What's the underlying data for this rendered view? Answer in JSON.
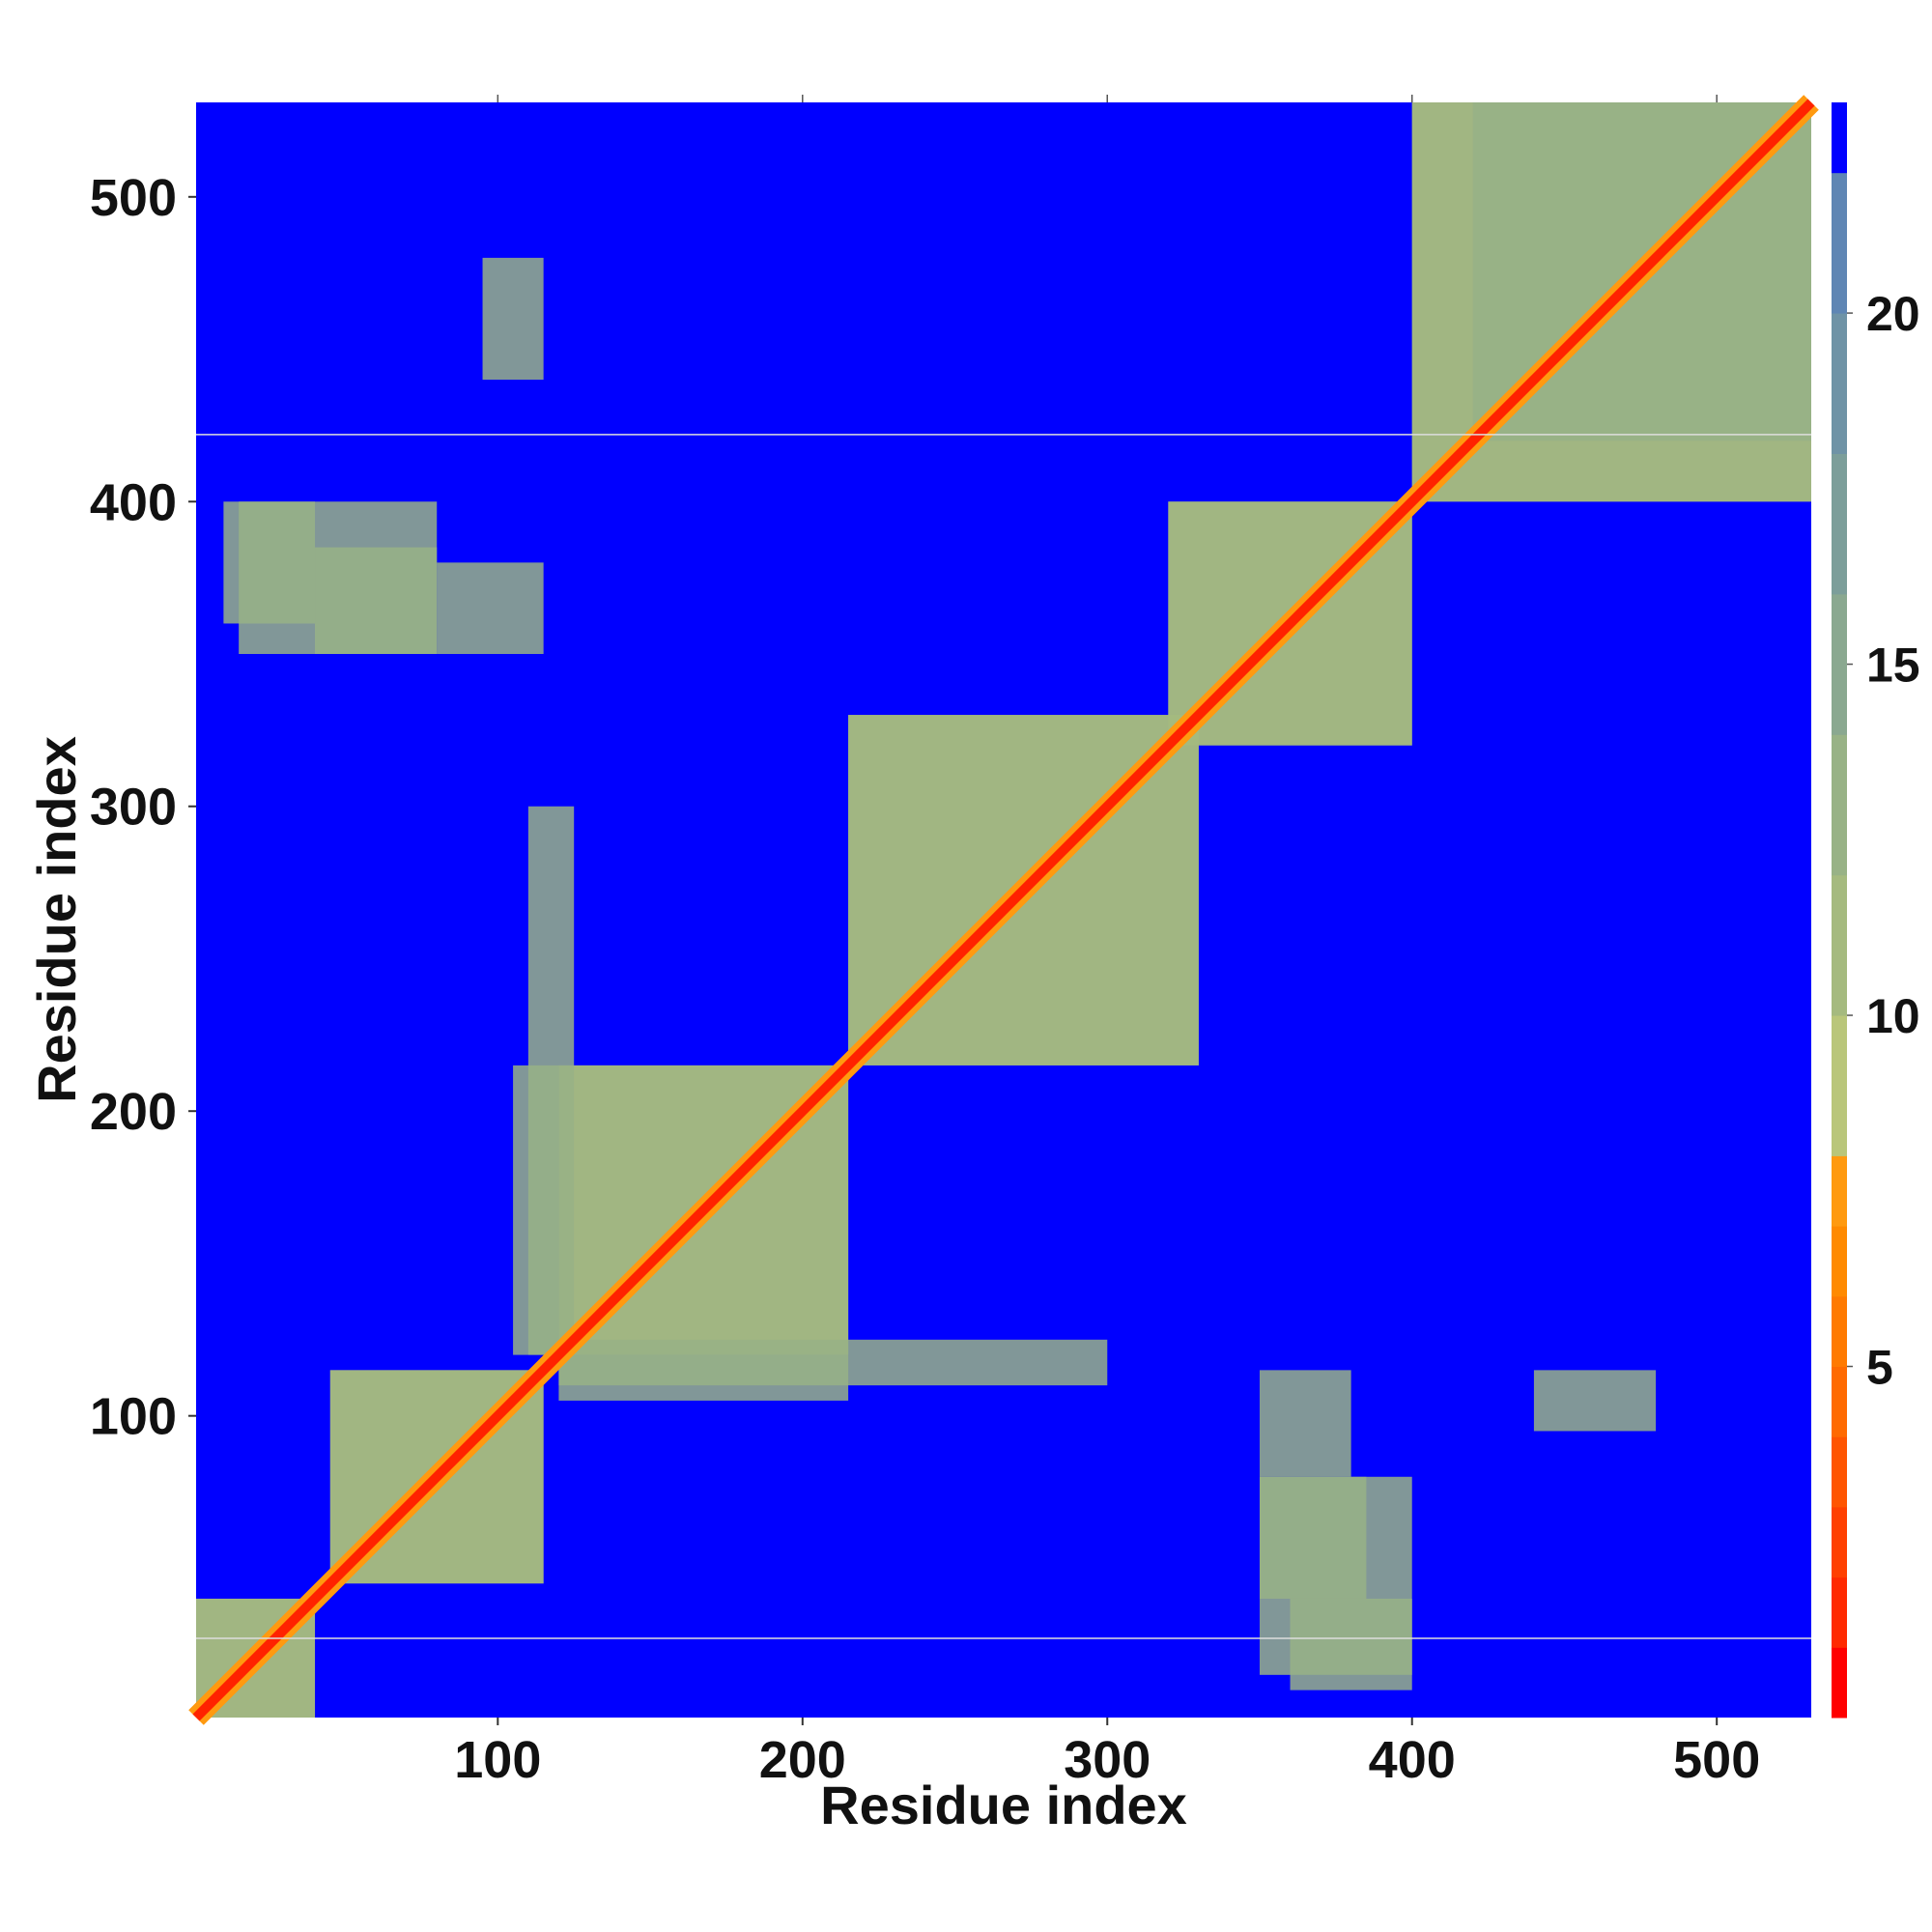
{
  "chart_data": {
    "type": "heatmap",
    "title": "",
    "xlabel": "Residue index",
    "ylabel": "Residue index",
    "xlim": [
      1,
      531
    ],
    "ylim": [
      1,
      531
    ],
    "x_ticks": [
      100,
      200,
      300,
      400,
      500
    ],
    "y_ticks": [
      100,
      200,
      300,
      400,
      500
    ],
    "grid": false,
    "colorbar": {
      "orientation": "vertical",
      "position": "right",
      "range": [
        0,
        23
      ],
      "ticks": [
        5,
        10,
        15,
        20
      ],
      "levels": [
        {
          "from": 0,
          "to": 1,
          "color": "#ff0000"
        },
        {
          "from": 1,
          "to": 2,
          "color": "#ff2a00"
        },
        {
          "from": 2,
          "to": 3,
          "color": "#ff4000"
        },
        {
          "from": 3,
          "to": 4,
          "color": "#ff5500"
        },
        {
          "from": 4,
          "to": 5,
          "color": "#ff6a00"
        },
        {
          "from": 5,
          "to": 6,
          "color": "#ff7a00"
        },
        {
          "from": 6,
          "to": 7,
          "color": "#ff8a00"
        },
        {
          "from": 7,
          "to": 8,
          "color": "#ff9a10"
        },
        {
          "from": 8,
          "to": 10,
          "color": "#b9c67a"
        },
        {
          "from": 10,
          "to": 12,
          "color": "#a5ba7f"
        },
        {
          "from": 12,
          "to": 14,
          "color": "#98b286"
        },
        {
          "from": 14,
          "to": 16,
          "color": "#8aa890"
        },
        {
          "from": 16,
          "to": 18,
          "color": "#7c9e9a"
        },
        {
          "from": 18,
          "to": 20,
          "color": "#6f93a6"
        },
        {
          "from": 20,
          "to": 22,
          "color": "#5f86b4"
        },
        {
          "from": 22,
          "to": 23,
          "color": "#0000ff"
        }
      ]
    },
    "background_color": "#0000ff",
    "diagonal_color": "#ff2200",
    "contact_blocks": [
      {
        "x": [
          1,
          40
        ],
        "y": [
          1,
          40
        ],
        "value": 10
      },
      {
        "x": [
          45,
          115
        ],
        "y": [
          45,
          115
        ],
        "value": 11
      },
      {
        "x": [
          120,
          215
        ],
        "y": [
          120,
          215
        ],
        "value": 11
      },
      {
        "x": [
          215,
          330
        ],
        "y": [
          215,
          330
        ],
        "value": 11
      },
      {
        "x": [
          320,
          400
        ],
        "y": [
          320,
          400
        ],
        "value": 11
      },
      {
        "x": [
          400,
          531
        ],
        "y": [
          400,
          531
        ],
        "value": 11
      },
      {
        "x": [
          120,
          215
        ],
        "y": [
          105,
          120
        ],
        "value": 12
      },
      {
        "x": [
          110,
          125
        ],
        "y": [
          120,
          300
        ],
        "value": 12
      },
      {
        "x": [
          10,
          40
        ],
        "y": [
          360,
          400
        ],
        "value": 12
      },
      {
        "x": [
          40,
          80
        ],
        "y": [
          350,
          385
        ],
        "value": 12
      },
      {
        "x": [
          420,
          531
        ],
        "y": [
          420,
          531
        ],
        "value": 12
      },
      {
        "x": [
          350,
          400
        ],
        "y": [
          15,
          80
        ],
        "value": 13
      },
      {
        "x": [
          350,
          380
        ],
        "y": [
          80,
          115
        ],
        "value": 13
      },
      {
        "x": [
          440,
          480
        ],
        "y": [
          95,
          115
        ],
        "value": 13
      }
    ],
    "separator_lines_y": [
      27,
      422
    ]
  },
  "colors": {
    "background": "#ffffff",
    "text": "#111111",
    "separator": "#dddddd"
  }
}
